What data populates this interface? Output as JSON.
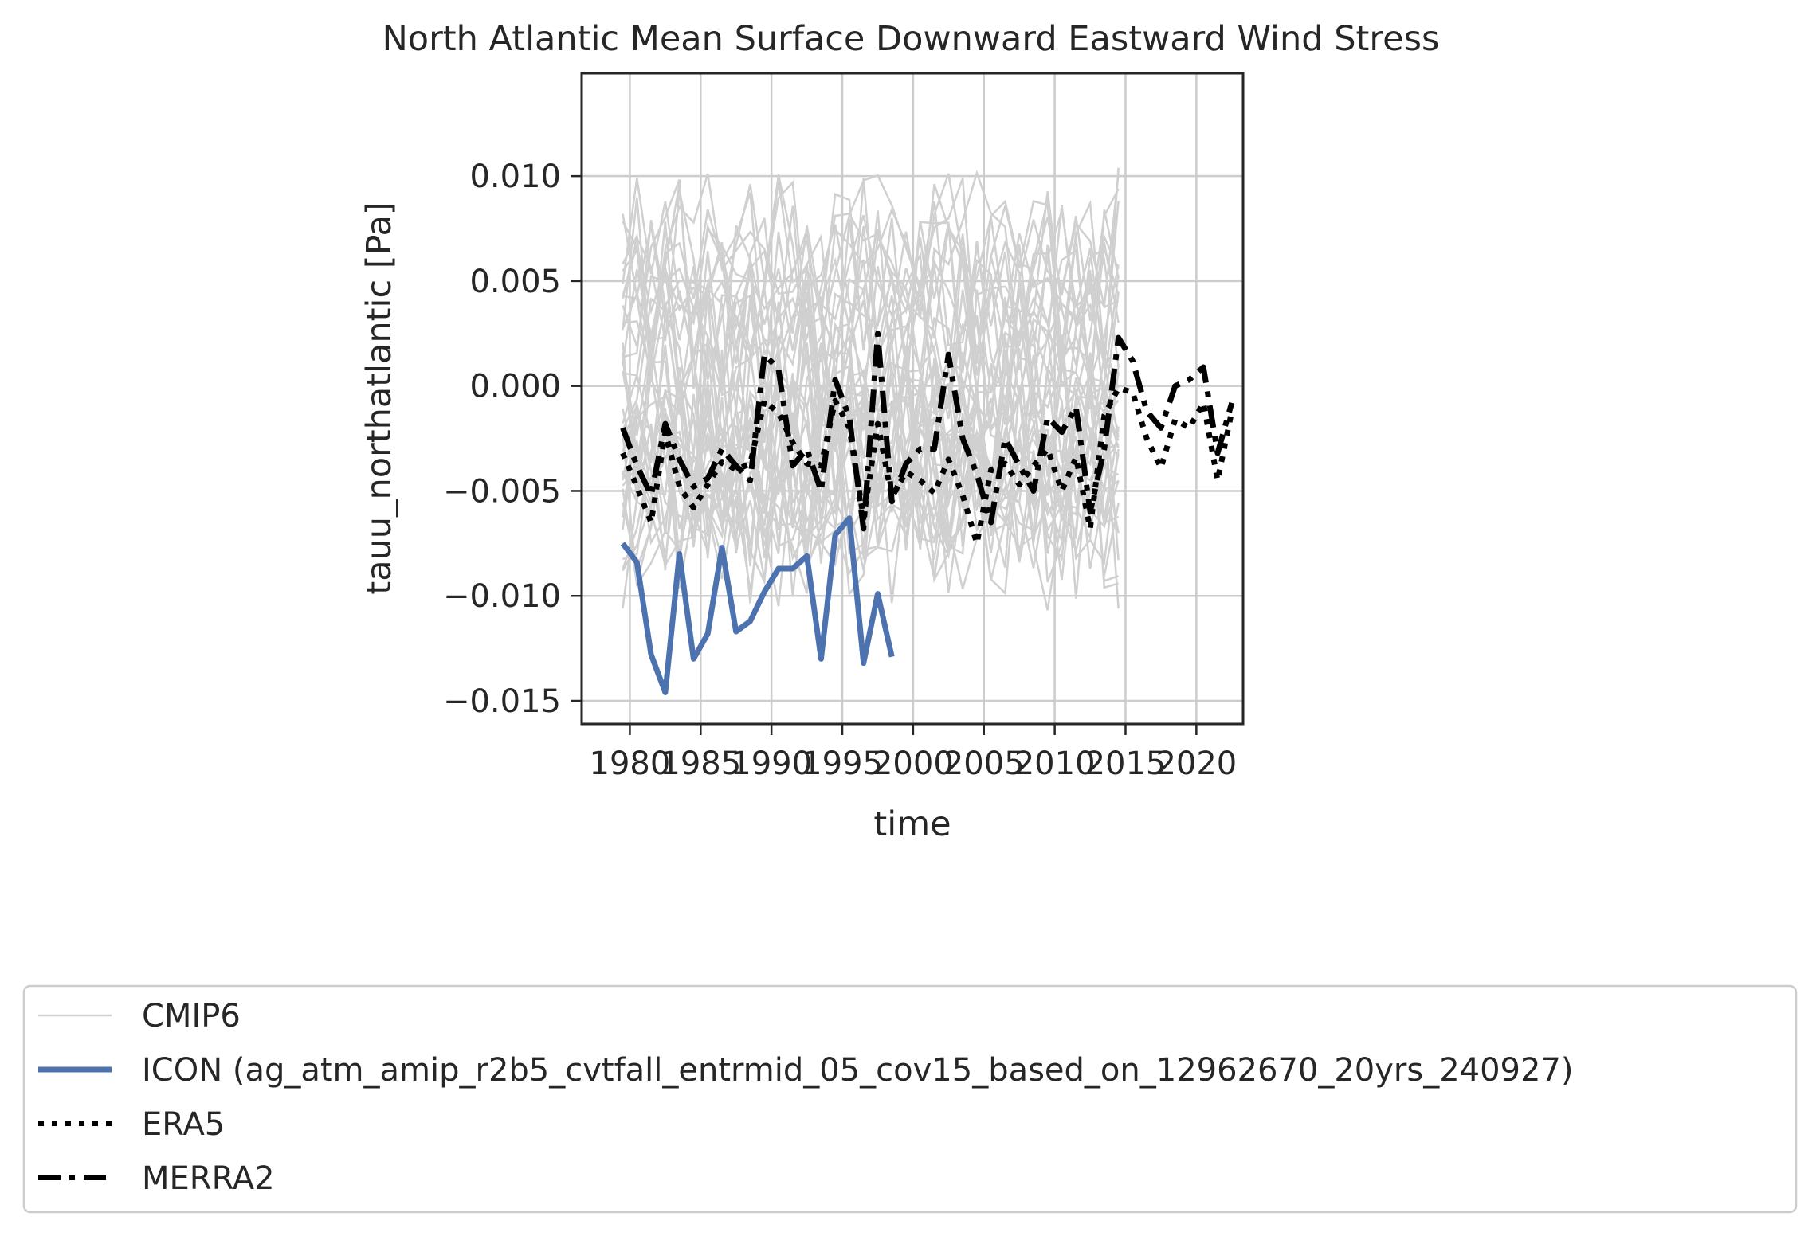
{
  "chart_data": {
    "type": "line",
    "title": "North Atlantic Mean Surface Downward Eastward Wind Stress",
    "xlabel": "time",
    "ylabel": "tauu_northatlantic [Pa]",
    "xlim": [
      1976.6,
      2023.3
    ],
    "ylim": [
      -0.0161,
      0.0149
    ],
    "x_ticks": [
      1980,
      1985,
      1990,
      1995,
      2000,
      2005,
      2010,
      2015,
      2020
    ],
    "y_ticks": [
      0.01,
      0.005,
      0.0,
      -0.005,
      -0.01,
      -0.015
    ],
    "y_tick_labels": [
      "0.010",
      "0.005",
      "0.000",
      "−0.005",
      "−0.010",
      "−0.015"
    ],
    "grid": true,
    "legend_position": "below",
    "colors": {
      "cmip6": "#d0d0d0",
      "icon": "#4c72b0",
      "era5": "#000000",
      "merra2": "#000000",
      "grid": "#cccccc",
      "axes": "#262626"
    },
    "series": [
      {
        "name": "ICON (ag_atm_amip_r2b5_cvtfall_entrmid_05_cov15_based_on_12962670_20yrs_240927)",
        "style": "solid",
        "x": [
          1979.5,
          1980.5,
          1981.5,
          1982.5,
          1983.5,
          1984.5,
          1985.5,
          1986.5,
          1987.5,
          1988.5,
          1989.5,
          1990.5,
          1991.5,
          1992.5,
          1993.5,
          1994.5,
          1995.5,
          1996.5,
          1997.5,
          1998.5
        ],
        "y": [
          -0.0075,
          -0.0084,
          -0.0128,
          -0.0146,
          -0.008,
          -0.013,
          -0.0118,
          -0.0077,
          -0.0117,
          -0.0112,
          -0.0098,
          -0.0087,
          -0.0087,
          -0.0081,
          -0.013,
          -0.0071,
          -0.0063,
          -0.0132,
          -0.0099,
          -0.0129
        ]
      },
      {
        "name": "ERA5",
        "style": "dotted",
        "x": [
          1979.5,
          1980.5,
          1981.5,
          1982.5,
          1983.5,
          1984.5,
          1985.5,
          1986.5,
          1987.5,
          1988.5,
          1989.5,
          1990.5,
          1991.5,
          1992.5,
          1993.5,
          1994.5,
          1995.5,
          1996.5,
          1997.5,
          1998.5,
          1999.5,
          2000.5,
          2001.5,
          2002.5,
          2003.5,
          2004.5,
          2005.5,
          2006.5,
          2007.5,
          2008.5,
          2009.5,
          2010.5,
          2011.5,
          2012.5,
          2013.5,
          2014.5,
          2015.5,
          2016.5,
          2017.5,
          2018.5,
          2019.5,
          2020.5,
          2021.5,
          2022.5
        ],
        "y": [
          -0.0032,
          -0.0048,
          -0.0065,
          -0.0022,
          -0.0048,
          -0.0058,
          -0.0047,
          -0.0036,
          -0.004,
          -0.0037,
          -0.0007,
          -0.0013,
          -0.0027,
          -0.0037,
          -0.0038,
          -0.0007,
          -0.002,
          -0.0063,
          -0.0018,
          -0.0053,
          -0.0041,
          -0.0045,
          -0.0051,
          -0.0035,
          -0.0052,
          -0.0075,
          -0.004,
          -0.0037,
          -0.0047,
          -0.0038,
          -0.003,
          -0.005,
          -0.0034,
          -0.0068,
          -0.0014,
          -0.0001,
          -0.0003,
          -0.0025,
          -0.0039,
          -0.0016,
          -0.002,
          -0.0008,
          -0.0045,
          -0.0012
        ]
      },
      {
        "name": "MERRA2",
        "style": "dashdot",
        "x": [
          1979.5,
          1980.5,
          1981.5,
          1982.5,
          1983.5,
          1984.5,
          1985.5,
          1986.5,
          1987.5,
          1988.5,
          1989.5,
          1990.5,
          1991.5,
          1992.5,
          1993.5,
          1994.5,
          1995.5,
          1996.5,
          1997.5,
          1998.5,
          1999.5,
          2000.5,
          2001.5,
          2002.5,
          2003.5,
          2004.5,
          2005.5,
          2006.5,
          2007.5,
          2008.5,
          2009.5,
          2010.5,
          2011.5,
          2012.5,
          2013.5,
          2014.5,
          2015.5,
          2016.5,
          2017.5,
          2018.5,
          2019.5,
          2020.5,
          2021.5,
          2022.5
        ],
        "y": [
          -0.002,
          -0.0038,
          -0.0052,
          -0.0018,
          -0.0035,
          -0.0048,
          -0.0044,
          -0.003,
          -0.0038,
          -0.0045,
          0.0015,
          0.0008,
          -0.0038,
          -0.003,
          -0.005,
          0.0003,
          -0.0015,
          -0.0068,
          0.0025,
          -0.0055,
          -0.0037,
          -0.003,
          -0.003,
          0.0015,
          -0.0025,
          -0.0042,
          -0.0065,
          -0.0025,
          -0.0038,
          -0.005,
          -0.0015,
          -0.0022,
          -0.001,
          -0.006,
          -0.003,
          0.0023,
          0.0012,
          -0.0012,
          -0.002,
          0.0,
          0.0003,
          0.0009,
          -0.0032,
          -0.0008
        ]
      }
    ],
    "legend": [
      {
        "label": "CMIP6",
        "style": "cmip6"
      },
      {
        "label": "ICON (ag_atm_amip_r2b5_cvtfall_entrmid_05_cov15_based_on_12962670_20yrs_240927)",
        "style": "icon"
      },
      {
        "label": "ERA5",
        "style": "era5"
      },
      {
        "label": "MERRA2",
        "style": "merra2"
      }
    ]
  }
}
